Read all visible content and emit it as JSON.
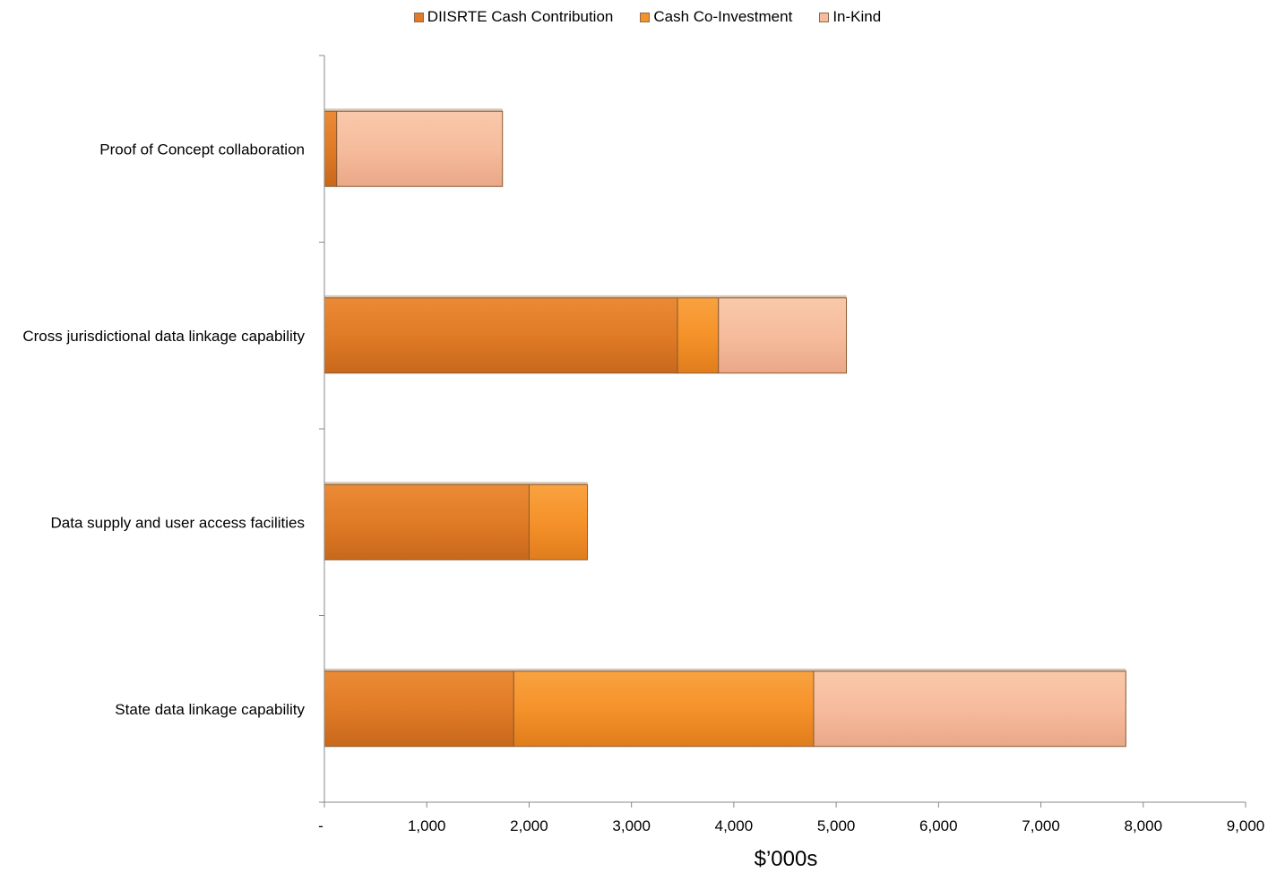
{
  "chart_data": {
    "type": "bar",
    "orientation": "horizontal",
    "stacked": true,
    "categories": [
      "Proof of Concept collaboration",
      "Cross jurisdictional data linkage capability",
      "Data supply and user access facilities",
      "State data linkage capability"
    ],
    "series": [
      {
        "name": "DIISRTE Cash Contribution",
        "color": "#e07b26",
        "values": [
          120,
          3450,
          2000,
          1850
        ]
      },
      {
        "name": "Cash Co-Investment",
        "color": "#f5922a",
        "values": [
          0,
          400,
          570,
          2930
        ]
      },
      {
        "name": "In-Kind",
        "color": "#f6bc9c",
        "values": [
          1620,
          1250,
          0,
          3050
        ]
      }
    ],
    "xlabel": "$’000s",
    "xlim": [
      0,
      9000
    ],
    "xticks": [
      {
        "value": 0,
        "label": "-"
      },
      {
        "value": 1000,
        "label": "1,000"
      },
      {
        "value": 2000,
        "label": "2,000"
      },
      {
        "value": 3000,
        "label": "3,000"
      },
      {
        "value": 4000,
        "label": "4,000"
      },
      {
        "value": 5000,
        "label": "5,000"
      },
      {
        "value": 6000,
        "label": "6,000"
      },
      {
        "value": 7000,
        "label": "7,000"
      },
      {
        "value": 8000,
        "label": "8,000"
      },
      {
        "value": 9000,
        "label": "9,000"
      }
    ],
    "legend_position": "top",
    "grid": false
  }
}
